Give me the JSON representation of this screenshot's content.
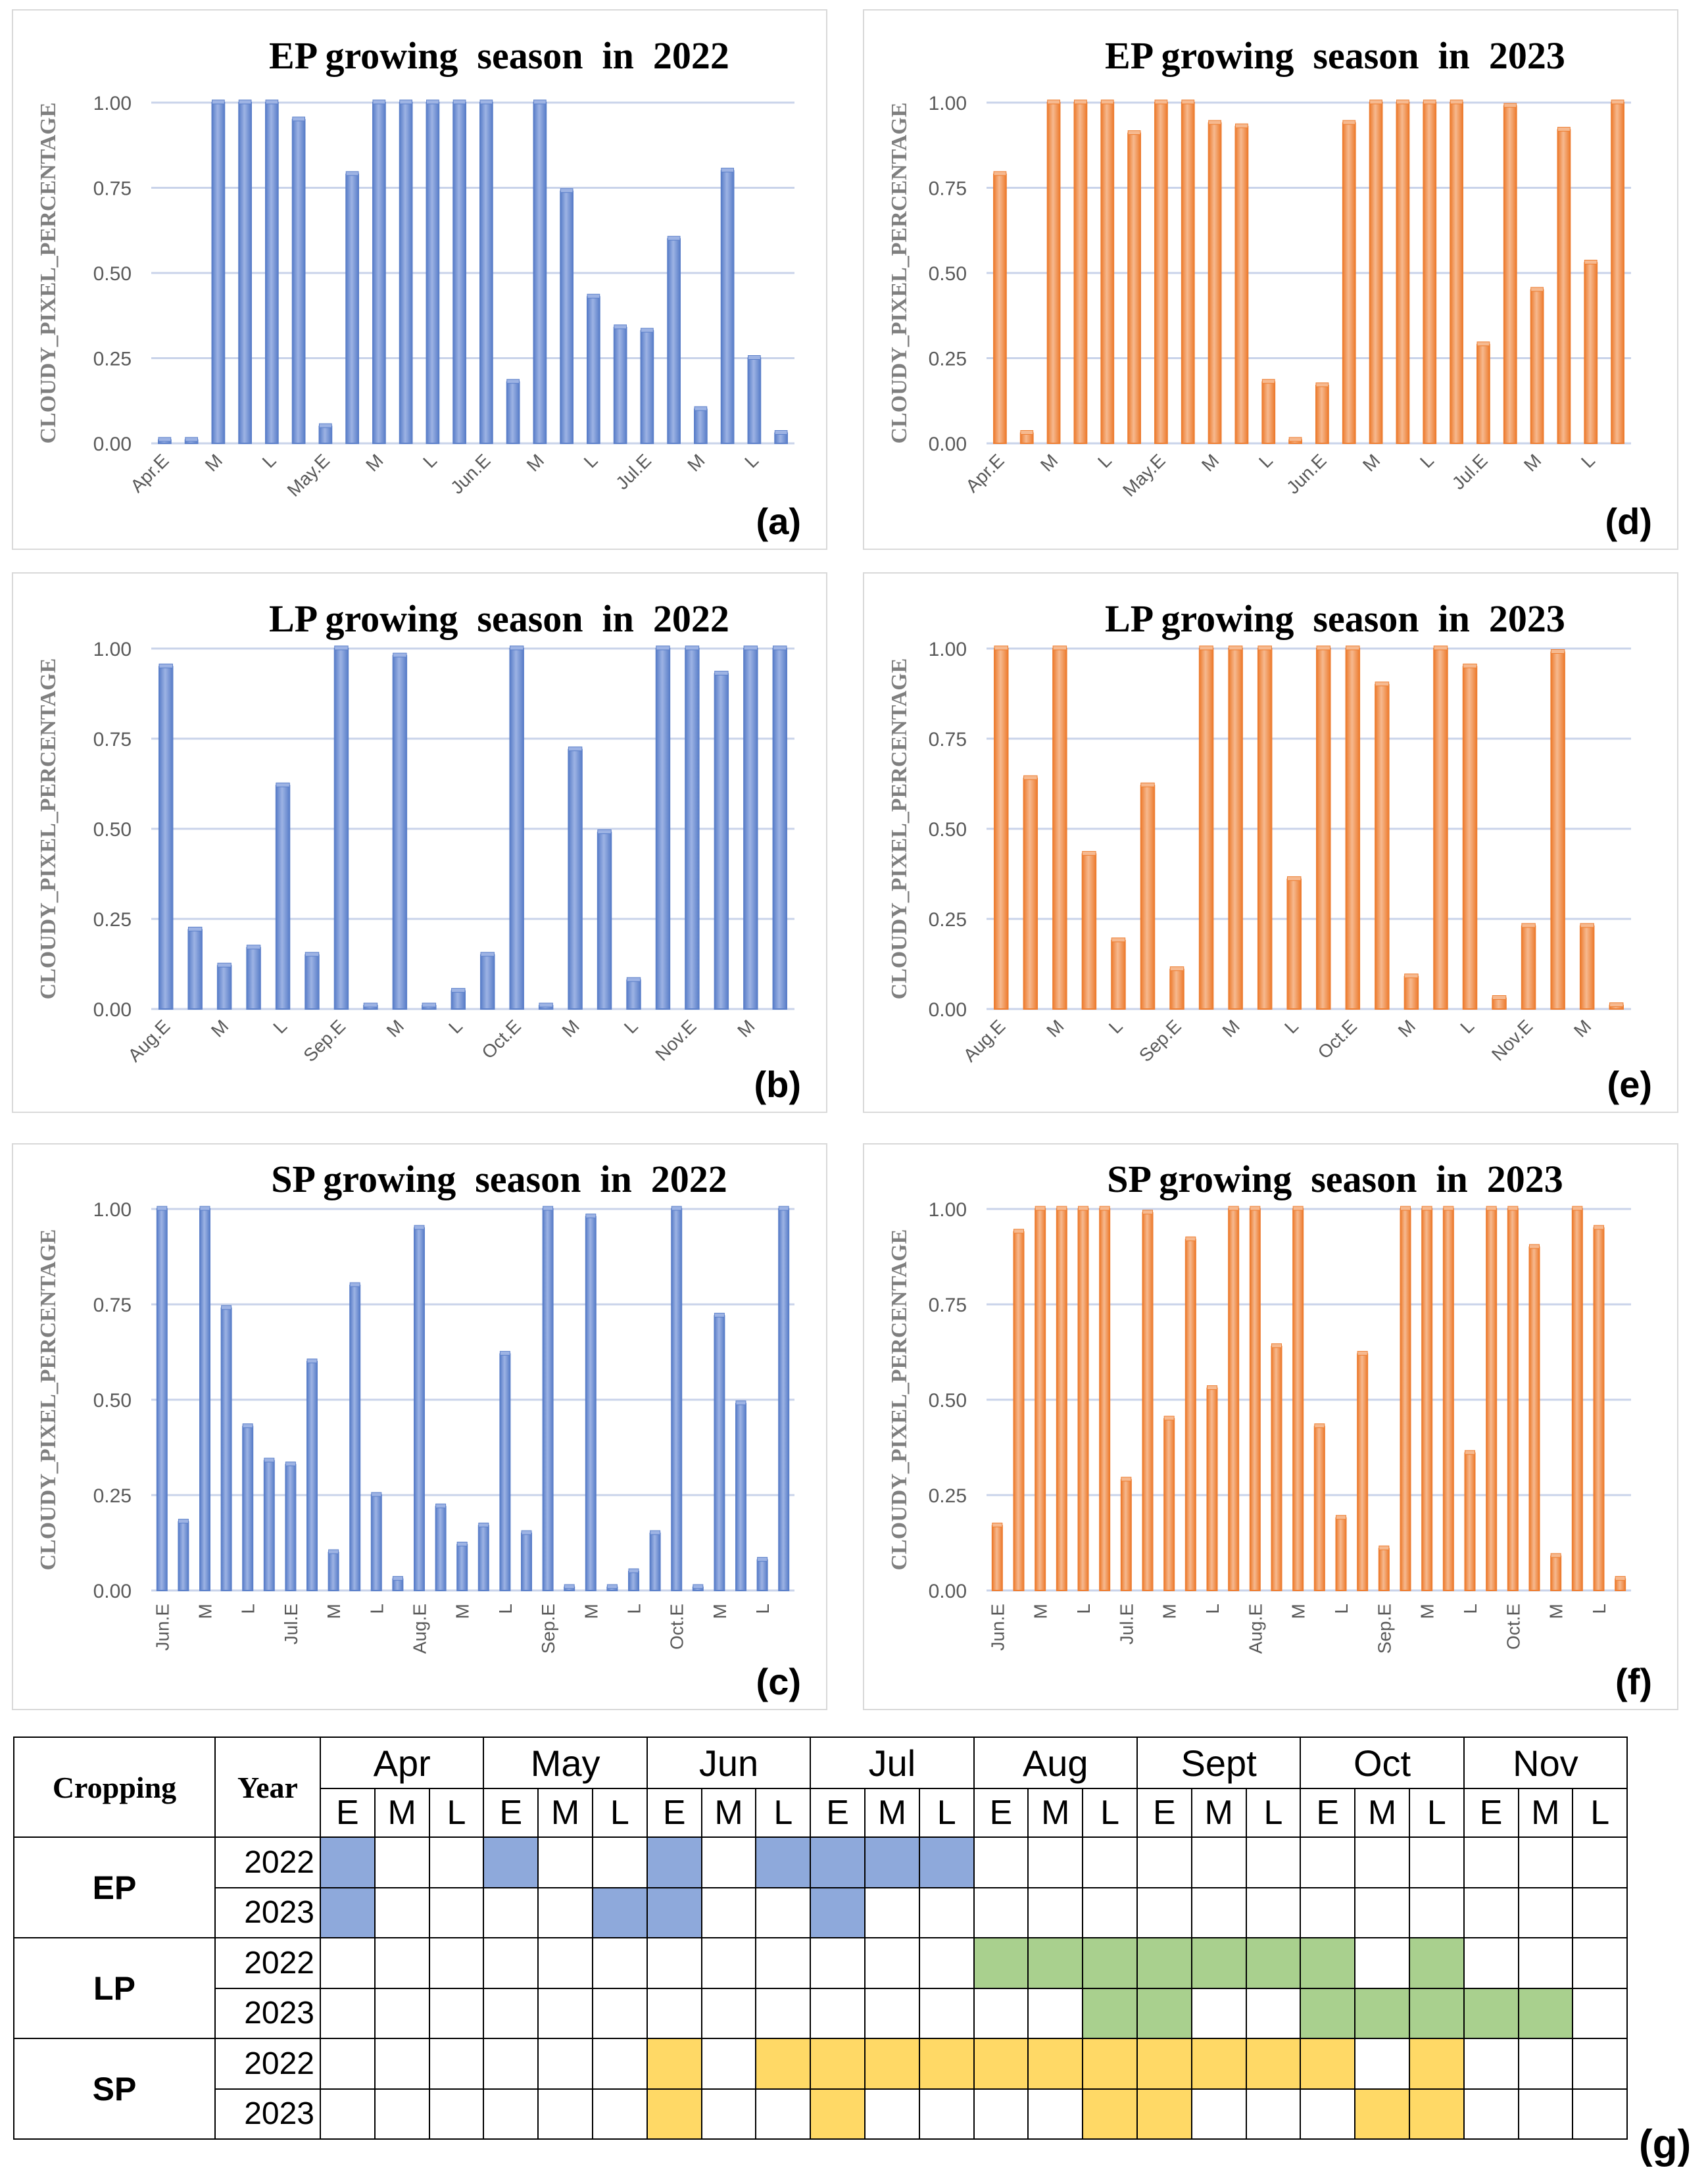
{
  "colors": {
    "blue_bar": "#5B7FC9",
    "blue_bar_light": "#9DB3E4",
    "orange_bar": "#ED7D31",
    "orange_bar_light": "#F6B98F",
    "grid": "#C9D3EA",
    "blue_cell": "#8EA9DB",
    "green_cell": "#A9D08E",
    "yellow_cell": "#FFD966"
  },
  "y_axis_label": "CLOUDY_PIXEL_PERCENTAGE",
  "chart_data": [
    {
      "id": "a",
      "type": "bar",
      "panel_label": "(a)",
      "color": "blue",
      "title": "EP growing  season  in  2022",
      "ylabel": "CLOUDY_PIXEL_PERCENTAGE",
      "ylim": [
        0,
        1
      ],
      "yticks": [
        "0.00",
        "0.25",
        "0.50",
        "0.75",
        "1.00"
      ],
      "xticks": [
        "Apr.E",
        "M",
        "L",
        "May.E",
        "M",
        "L",
        "Jun.E",
        "M",
        "L",
        "Jul.E",
        "M",
        "L"
      ],
      "values": [
        0,
        0,
        1.0,
        1.0,
        1.0,
        0.95,
        0.05,
        0.79,
        1.0,
        1.0,
        1.0,
        1.0,
        1.0,
        0.18,
        1.0,
        0.74,
        0.43,
        0.34,
        0.33,
        0.6,
        0.1,
        0.8,
        0.25,
        0.03
      ]
    },
    {
      "id": "b",
      "type": "bar",
      "panel_label": "(b)",
      "color": "blue",
      "title": "LP growing  season  in  2022",
      "ylabel": "CLOUDY_PIXEL_PERCENTAGE",
      "ylim": [
        0,
        1
      ],
      "yticks": [
        "0.00",
        "0.25",
        "0.50",
        "0.75",
        "1.00"
      ],
      "xticks": [
        "Aug.E",
        "M",
        "L",
        "Sep.E",
        "M",
        "L",
        "Oct.E",
        "M",
        "L",
        "Nov.E",
        "M"
      ],
      "values": [
        0.95,
        0.22,
        0.12,
        0.17,
        0.62,
        0.15,
        1.0,
        0,
        0.98,
        0,
        0.05,
        0.15,
        1.0,
        0,
        0.72,
        0.49,
        0.08,
        1.0,
        1.0,
        0.93,
        1.0,
        1.0
      ]
    },
    {
      "id": "c",
      "type": "bar",
      "panel_label": "(c)",
      "color": "blue",
      "title": "SP growing  season  in  2022",
      "ylabel": "CLOUDY_PIXEL_PERCENTAGE",
      "ylim": [
        0,
        1
      ],
      "yticks": [
        "0.00",
        "0.25",
        "0.50",
        "0.75",
        "1.00"
      ],
      "xticks": [
        "Jun.E",
        "M",
        "L",
        "Jul.E",
        "M",
        "L",
        "Aug.E",
        "M",
        "L",
        "Sep.E",
        "M",
        "L",
        "Oct.E",
        "M",
        "L"
      ],
      "values": [
        1.0,
        0.18,
        1.0,
        0.74,
        0.43,
        0.34,
        0.33,
        0.6,
        0.1,
        0.8,
        0.25,
        0.03,
        0.95,
        0.22,
        0.12,
        0.17,
        0.62,
        0.15,
        1.0,
        0,
        0.98,
        0,
        0.05,
        0.15,
        1.0,
        0,
        0.72,
        0.49,
        0.08,
        1.0
      ]
    },
    {
      "id": "d",
      "type": "bar",
      "panel_label": "(d)",
      "color": "orange",
      "title": "EP growing  season  in  2023",
      "ylabel": "CLOUDY_PIXEL_PERCENTAGE",
      "ylim": [
        0,
        1
      ],
      "yticks": [
        "0.00",
        "0.25",
        "0.50",
        "0.75",
        "1.00"
      ],
      "xticks": [
        "Apr.E",
        "M",
        "L",
        "May.E",
        "M",
        "L",
        "Jun.E",
        "M",
        "L",
        "Jul.E",
        "M",
        "L"
      ],
      "values": [
        0.79,
        0.03,
        1.0,
        1.0,
        1.0,
        0.91,
        1.0,
        1.0,
        0.94,
        0.93,
        0.18,
        0,
        0.17,
        0.94,
        1.0,
        1.0,
        1.0,
        1.0,
        0.29,
        0.99,
        0.45,
        0.92,
        0.53,
        1.0
      ]
    },
    {
      "id": "e",
      "type": "bar",
      "panel_label": "(e)",
      "color": "orange",
      "title": "LP growing  season  in  2023",
      "ylabel": "CLOUDY_PIXEL_PERCENTAGE",
      "ylim": [
        0,
        1
      ],
      "yticks": [
        "0.00",
        "0.25",
        "0.50",
        "0.75",
        "1.00"
      ],
      "xticks": [
        "Aug.E",
        "M",
        "L",
        "Sep.E",
        "M",
        "L",
        "Oct.E",
        "M",
        "L",
        "Nov.E",
        "M"
      ],
      "values": [
        1.0,
        0.64,
        1.0,
        0.43,
        0.19,
        0.62,
        0.11,
        1.0,
        1.0,
        1.0,
        0.36,
        1.0,
        1.0,
        0.9,
        0.09,
        1.0,
        0.95,
        0.03,
        0.23,
        0.99,
        0.23,
        0.01
      ]
    },
    {
      "id": "f",
      "type": "bar",
      "panel_label": "(f)",
      "color": "orange",
      "title": "SP growing  season  in  2023",
      "ylabel": "CLOUDY_PIXEL_PERCENTAGE",
      "ylim": [
        0,
        1
      ],
      "yticks": [
        "0.00",
        "0.25",
        "0.50",
        "0.75",
        "1.00"
      ],
      "xticks": [
        "Jun.E",
        "M",
        "L",
        "Jul.E",
        "M",
        "L",
        "Aug.E",
        "M",
        "L",
        "Sep.E",
        "M",
        "L",
        "Oct.E",
        "M",
        "L"
      ],
      "values": [
        0.17,
        0.94,
        1.0,
        1.0,
        1.0,
        1.0,
        0.29,
        0.99,
        0.45,
        0.92,
        0.53,
        1.0,
        1.0,
        0.64,
        1.0,
        0.43,
        0.19,
        0.62,
        0.11,
        1.0,
        1.0,
        1.0,
        0.36,
        1.0,
        1.0,
        0.9,
        0.09,
        1.0,
        0.95,
        0.03
      ]
    }
  ],
  "table": {
    "panel_label": "(g)",
    "header_cropping": "Cropping",
    "header_year": "Year",
    "months": [
      "Apr",
      "May",
      "Jun",
      "Jul",
      "Aug",
      "Sept",
      "Oct",
      "Nov"
    ],
    "subperiods": [
      "E",
      "M",
      "L"
    ],
    "rows": [
      {
        "crop": "EP",
        "year": "2022",
        "color": "blue",
        "cells": [
          1,
          0,
          0,
          1,
          0,
          0,
          1,
          0,
          1,
          1,
          1,
          1,
          0,
          0,
          0,
          0,
          0,
          0,
          0,
          0,
          0,
          0,
          0,
          0
        ]
      },
      {
        "crop": "EP",
        "year": "2023",
        "color": "blue",
        "cells": [
          1,
          0,
          0,
          0,
          0,
          1,
          1,
          0,
          0,
          1,
          0,
          0,
          0,
          0,
          0,
          0,
          0,
          0,
          0,
          0,
          0,
          0,
          0,
          0
        ]
      },
      {
        "crop": "LP",
        "year": "2022",
        "color": "green",
        "cells": [
          0,
          0,
          0,
          0,
          0,
          0,
          0,
          0,
          0,
          0,
          0,
          0,
          1,
          1,
          1,
          1,
          1,
          1,
          1,
          0,
          1,
          0,
          0,
          0
        ]
      },
      {
        "crop": "LP",
        "year": "2023",
        "color": "green",
        "cells": [
          0,
          0,
          0,
          0,
          0,
          0,
          0,
          0,
          0,
          0,
          0,
          0,
          0,
          0,
          1,
          1,
          0,
          0,
          1,
          1,
          1,
          1,
          1,
          0
        ]
      },
      {
        "crop": "SP",
        "year": "2022",
        "color": "yellow",
        "cells": [
          0,
          0,
          0,
          0,
          0,
          0,
          1,
          0,
          1,
          1,
          1,
          1,
          1,
          1,
          1,
          1,
          1,
          1,
          1,
          0,
          1,
          0,
          0,
          0
        ]
      },
      {
        "crop": "SP",
        "year": "2023",
        "color": "yellow",
        "cells": [
          0,
          0,
          0,
          0,
          0,
          0,
          1,
          0,
          0,
          1,
          0,
          0,
          0,
          0,
          1,
          1,
          0,
          0,
          0,
          1,
          1,
          0,
          0,
          0
        ]
      }
    ]
  }
}
